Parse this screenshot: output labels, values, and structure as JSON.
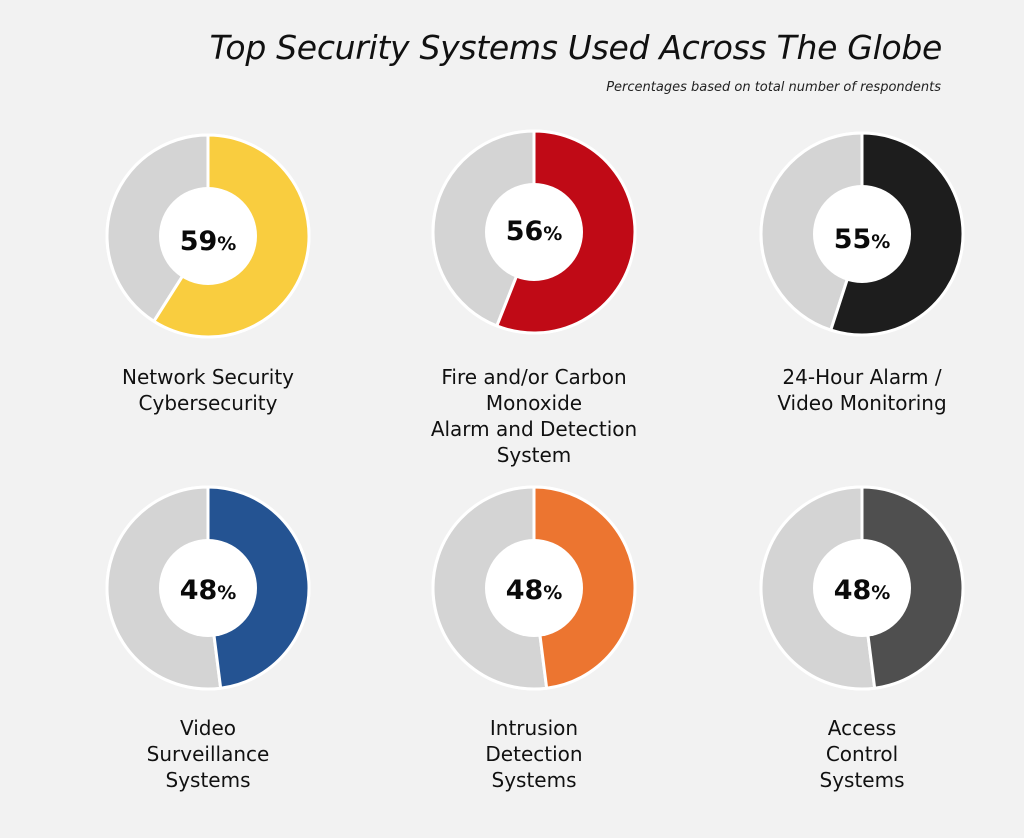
{
  "title": "Top Security Systems Used Across The Globe",
  "subtitle": "Percentages based on total number of respondents",
  "percent_symbol": "%",
  "chart_data": [
    {
      "type": "pie",
      "value": 59,
      "value_label": "59",
      "label_lines": [
        "Network Security",
        "Cybersecurity"
      ],
      "color": "#f9cd3f",
      "remainder_color": "#d4d4d4"
    },
    {
      "type": "pie",
      "value": 56,
      "value_label": "56",
      "label_lines": [
        "Fire and/or Carbon",
        "Monoxide",
        "Alarm and Detection",
        "System"
      ],
      "color": "#c00a16",
      "remainder_color": "#d4d4d4"
    },
    {
      "type": "pie",
      "value": 55,
      "value_label": "55",
      "label_lines": [
        "24-Hour Alarm /",
        "Video Monitoring"
      ],
      "color": "#1d1d1d",
      "remainder_color": "#d4d4d4"
    },
    {
      "type": "pie",
      "value": 48,
      "value_label": "48",
      "label_lines": [
        "Video",
        "Surveillance",
        "Systems"
      ],
      "color": "#245392",
      "remainder_color": "#d4d4d4"
    },
    {
      "type": "pie",
      "value": 48,
      "value_label": "48",
      "label_lines": [
        "Intrusion",
        "Detection",
        "Systems"
      ],
      "color": "#ec7530",
      "remainder_color": "#d4d4d4"
    },
    {
      "type": "pie",
      "value": 48,
      "value_label": "48",
      "label_lines": [
        "Access",
        "Control",
        "Systems"
      ],
      "color": "#4f4f4f",
      "remainder_color": "#d4d4d4"
    }
  ]
}
